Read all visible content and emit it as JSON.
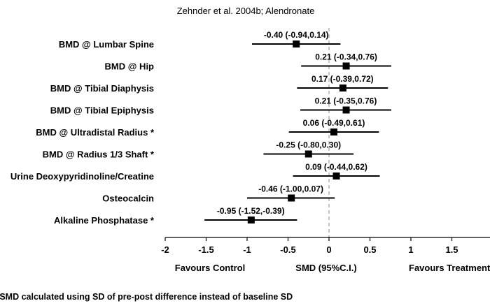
{
  "chart_data": {
    "type": "forest",
    "title": "Zehnder et al. 2004b; Alendronate",
    "rows": [
      {
        "label": "BMD @ Lumbar Spine",
        "estimate": -0.4,
        "lower": -0.94,
        "upper": 0.14,
        "text": "-0.40 (-0.94,0.14)"
      },
      {
        "label": "BMD @ Hip",
        "estimate": 0.21,
        "lower": -0.34,
        "upper": 0.76,
        "text": "0.21 (-0.34,0.76)"
      },
      {
        "label": "BMD @ Tibial Diaphysis",
        "estimate": 0.17,
        "lower": -0.39,
        "upper": 0.72,
        "text": "0.17 (-0.39,0.72)"
      },
      {
        "label": "BMD @ Tibial Epiphysis",
        "estimate": 0.21,
        "lower": -0.35,
        "upper": 0.76,
        "text": "0.21 (-0.35,0.76)"
      },
      {
        "label": "BMD @ Ultradistal Radius *",
        "estimate": 0.06,
        "lower": -0.49,
        "upper": 0.61,
        "text": "0.06 (-0.49,0.61)"
      },
      {
        "label": "BMD @ Radius 1/3 Shaft *",
        "estimate": -0.25,
        "lower": -0.8,
        "upper": 0.3,
        "text": "-0.25 (-0.80,0.30)"
      },
      {
        "label": "Urine Deoxypyridinoline/Creatine",
        "estimate": 0.09,
        "lower": -0.44,
        "upper": 0.62,
        "text": "0.09 (-0.44,0.62)"
      },
      {
        "label": "Osteocalcin",
        "estimate": -0.46,
        "lower": -1.0,
        "upper": 0.07,
        "text": "-0.46 (-1.00,0.07)"
      },
      {
        "label": "Alkaline Phosphatase *",
        "estimate": -0.95,
        "lower": -1.52,
        "upper": -0.39,
        "text": "-0.95 (-1.52,-0.39)"
      }
    ],
    "x_ticks": [
      "-2",
      "-1.5",
      "-1",
      "-0.5",
      "0",
      "0.5",
      "1",
      "1.5"
    ],
    "x_tick_values": [
      -2,
      -1.5,
      -1,
      -0.5,
      0,
      0.5,
      1,
      1.5
    ],
    "xlim": [
      -2,
      2
    ],
    "reference_line": 0,
    "xlabel": "SMD (95%C.I.)",
    "left_label": "Favours  Control",
    "right_label": "Favours  Treatment",
    "footnote": "* SMD calculated using SD of pre-post difference instead of baseline SD",
    "colors": {
      "marker": "#000000",
      "reference_line": "#a0a0a0"
    }
  }
}
